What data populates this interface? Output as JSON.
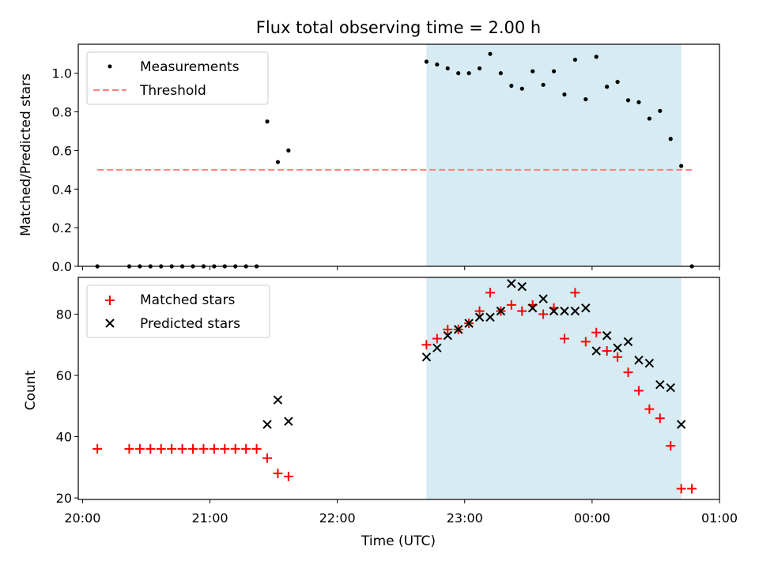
{
  "chart_data": [
    {
      "type": "scatter",
      "title": "Flux total observing time = 2.00 h",
      "xlabel": "",
      "ylabel": "Matched/Predicted stars",
      "xlim": [
        "2024-01-01T19:58",
        "2024-01-02T01:00"
      ],
      "ylim": [
        0,
        1.15
      ],
      "yticks": [
        "0.0",
        "0.2",
        "0.4",
        "0.6",
        "0.8",
        "1.0"
      ],
      "xticks_shown": false,
      "grid": false,
      "legend_position": "upper-left",
      "shaded_region": {
        "x0": "2024-01-01T22:42",
        "x1": "2024-01-02T00:42",
        "color": "#add8e6"
      },
      "series": [
        {
          "name": "Measurements",
          "marker": "dot",
          "color": "#000000",
          "points": [
            [
              "2024-01-01T20:07",
              0.0
            ],
            [
              "2024-01-01T20:22",
              0.0
            ],
            [
              "2024-01-01T20:27",
              0.0
            ],
            [
              "2024-01-01T20:32",
              0.0
            ],
            [
              "2024-01-01T20:37",
              0.0
            ],
            [
              "2024-01-01T20:42",
              0.0
            ],
            [
              "2024-01-01T20:47",
              0.0
            ],
            [
              "2024-01-01T20:52",
              0.0
            ],
            [
              "2024-01-01T20:57",
              0.0
            ],
            [
              "2024-01-01T21:02",
              0.0
            ],
            [
              "2024-01-01T21:07",
              0.0
            ],
            [
              "2024-01-01T21:12",
              0.0
            ],
            [
              "2024-01-01T21:17",
              0.0
            ],
            [
              "2024-01-01T21:22",
              0.0
            ],
            [
              "2024-01-01T21:27",
              0.75
            ],
            [
              "2024-01-01T21:32",
              0.54
            ],
            [
              "2024-01-01T21:37",
              0.6
            ],
            [
              "2024-01-01T22:42",
              1.06
            ],
            [
              "2024-01-01T22:47",
              1.045
            ],
            [
              "2024-01-01T22:52",
              1.025
            ],
            [
              "2024-01-01T22:57",
              1.0
            ],
            [
              "2024-01-01T23:02",
              1.0
            ],
            [
              "2024-01-01T23:07",
              1.025
            ],
            [
              "2024-01-01T23:12",
              1.1
            ],
            [
              "2024-01-01T23:17",
              1.0
            ],
            [
              "2024-01-01T23:22",
              0.935
            ],
            [
              "2024-01-01T23:27",
              0.92
            ],
            [
              "2024-01-01T23:32",
              1.01
            ],
            [
              "2024-01-01T23:37",
              0.94
            ],
            [
              "2024-01-01T23:42",
              1.01
            ],
            [
              "2024-01-01T23:47",
              0.89
            ],
            [
              "2024-01-01T23:52",
              1.07
            ],
            [
              "2024-01-01T23:57",
              0.865
            ],
            [
              "2024-01-02T00:02",
              1.085
            ],
            [
              "2024-01-02T00:07",
              0.93
            ],
            [
              "2024-01-02T00:12",
              0.955
            ],
            [
              "2024-01-02T00:17",
              0.86
            ],
            [
              "2024-01-02T00:22",
              0.85
            ],
            [
              "2024-01-02T00:27",
              0.765
            ],
            [
              "2024-01-02T00:32",
              0.805
            ],
            [
              "2024-01-02T00:37",
              0.66
            ],
            [
              "2024-01-02T00:42",
              0.52
            ],
            [
              "2024-01-02T00:47",
              0.0
            ]
          ]
        },
        {
          "name": "Threshold",
          "marker": "dashed-line",
          "color": "#ff7f7f",
          "points": [
            [
              "2024-01-01T20:07",
              0.5
            ],
            [
              "2024-01-02T00:47",
              0.5
            ]
          ]
        }
      ]
    },
    {
      "type": "scatter",
      "title": "",
      "xlabel": "Time (UTC)",
      "ylabel": "Count",
      "xlim": [
        "2024-01-01T19:58",
        "2024-01-02T01:00"
      ],
      "ylim": [
        19.5,
        92
      ],
      "yticks": [
        "20",
        "40",
        "60",
        "80"
      ],
      "xticks": [
        "20:00",
        "21:00",
        "22:00",
        "23:00",
        "00:00",
        "01:00"
      ],
      "grid": false,
      "legend_position": "upper-left",
      "shaded_region": {
        "x0": "2024-01-01T22:42",
        "x1": "2024-01-02T00:42",
        "color": "#add8e6"
      },
      "series": [
        {
          "name": "Matched stars",
          "marker": "plus",
          "color": "#ff0000",
          "points": [
            [
              "2024-01-01T20:07",
              36
            ],
            [
              "2024-01-01T20:22",
              36
            ],
            [
              "2024-01-01T20:27",
              36
            ],
            [
              "2024-01-01T20:32",
              36
            ],
            [
              "2024-01-01T20:37",
              36
            ],
            [
              "2024-01-01T20:42",
              36
            ],
            [
              "2024-01-01T20:47",
              36
            ],
            [
              "2024-01-01T20:52",
              36
            ],
            [
              "2024-01-01T20:57",
              36
            ],
            [
              "2024-01-01T21:02",
              36
            ],
            [
              "2024-01-01T21:07",
              36
            ],
            [
              "2024-01-01T21:12",
              36
            ],
            [
              "2024-01-01T21:17",
              36
            ],
            [
              "2024-01-01T21:22",
              36
            ],
            [
              "2024-01-01T21:27",
              33
            ],
            [
              "2024-01-01T21:32",
              28
            ],
            [
              "2024-01-01T21:37",
              27
            ],
            [
              "2024-01-01T22:42",
              70
            ],
            [
              "2024-01-01T22:47",
              72
            ],
            [
              "2024-01-01T22:52",
              75
            ],
            [
              "2024-01-01T22:57",
              75
            ],
            [
              "2024-01-01T23:02",
              77
            ],
            [
              "2024-01-01T23:07",
              81
            ],
            [
              "2024-01-01T23:12",
              87
            ],
            [
              "2024-01-01T23:17",
              81
            ],
            [
              "2024-01-01T23:22",
              83
            ],
            [
              "2024-01-01T23:27",
              81
            ],
            [
              "2024-01-01T23:32",
              83
            ],
            [
              "2024-01-01T23:37",
              80
            ],
            [
              "2024-01-01T23:42",
              82
            ],
            [
              "2024-01-01T23:47",
              72
            ],
            [
              "2024-01-01T23:52",
              87
            ],
            [
              "2024-01-01T23:57",
              71
            ],
            [
              "2024-01-02T00:02",
              74
            ],
            [
              "2024-01-02T00:07",
              68
            ],
            [
              "2024-01-02T00:12",
              66
            ],
            [
              "2024-01-02T00:17",
              61
            ],
            [
              "2024-01-02T00:22",
              55
            ],
            [
              "2024-01-02T00:27",
              49
            ],
            [
              "2024-01-02T00:32",
              46
            ],
            [
              "2024-01-02T00:37",
              37
            ],
            [
              "2024-01-02T00:42",
              23
            ],
            [
              "2024-01-02T00:47",
              23
            ]
          ]
        },
        {
          "name": "Predicted stars",
          "marker": "x",
          "color": "#000000",
          "points": [
            [
              "2024-01-01T21:27",
              44
            ],
            [
              "2024-01-01T21:32",
              52
            ],
            [
              "2024-01-01T21:37",
              45
            ],
            [
              "2024-01-01T22:42",
              66
            ],
            [
              "2024-01-01T22:47",
              69
            ],
            [
              "2024-01-01T22:52",
              73
            ],
            [
              "2024-01-01T22:57",
              75
            ],
            [
              "2024-01-01T23:02",
              77
            ],
            [
              "2024-01-01T23:07",
              79
            ],
            [
              "2024-01-01T23:12",
              79
            ],
            [
              "2024-01-01T23:17",
              81
            ],
            [
              "2024-01-01T23:22",
              90
            ],
            [
              "2024-01-01T23:27",
              89
            ],
            [
              "2024-01-01T23:32",
              82
            ],
            [
              "2024-01-01T23:37",
              85
            ],
            [
              "2024-01-01T23:42",
              81
            ],
            [
              "2024-01-01T23:47",
              81
            ],
            [
              "2024-01-01T23:52",
              81
            ],
            [
              "2024-01-01T23:57",
              82
            ],
            [
              "2024-01-02T00:02",
              68
            ],
            [
              "2024-01-02T00:07",
              73
            ],
            [
              "2024-01-02T00:12",
              69
            ],
            [
              "2024-01-02T00:17",
              71
            ],
            [
              "2024-01-02T00:22",
              65
            ],
            [
              "2024-01-02T00:27",
              64
            ],
            [
              "2024-01-02T00:32",
              57
            ],
            [
              "2024-01-02T00:37",
              56
            ],
            [
              "2024-01-02T00:42",
              44
            ]
          ]
        }
      ]
    }
  ]
}
